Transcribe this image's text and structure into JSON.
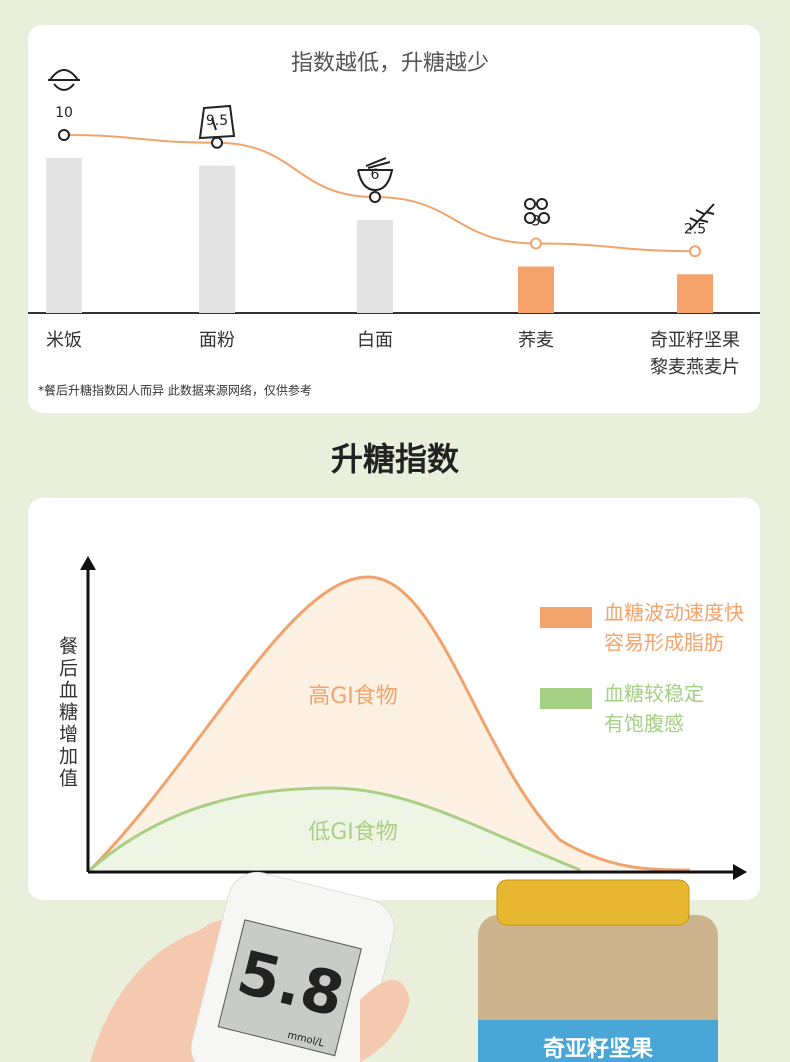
{
  "chart_data": [
    {
      "type": "bar",
      "title": "指数越低，升糖越少",
      "categories": [
        "米饭",
        "面粉",
        "白面",
        "荞麦",
        "奇亚籽坚果黎麦燕麦片"
      ],
      "values": [
        10,
        9.5,
        6,
        3,
        2.5
      ],
      "colors": [
        "#e3e3e3",
        "#e3e3e3",
        "#e3e3e3",
        "#f6a36b",
        "#f6a36b"
      ],
      "line_color": "#f0a46c",
      "note": "*餐后升糖指数因人而异 此数据来源网络，仅供参考"
    }
  ],
  "section_title": "升糖指数",
  "gi_diagram": {
    "y_label": "餐后血糖增加值",
    "curves": [
      {
        "name": "高GI食物",
        "color": "#f0a46c"
      },
      {
        "name": "低GI食物",
        "color": "#a9cf86"
      }
    ],
    "legend": [
      {
        "lines": [
          "血糖波动速度快",
          "容易形成脂肪"
        ],
        "color": "#f3a46d"
      },
      {
        "lines": [
          "血糖较稳定",
          "有饱腹感"
        ],
        "color": "#a5cf84"
      }
    ]
  },
  "photo": {
    "meter_reading": "5.8",
    "meter_unit": "mmol/L",
    "jar_brand": "奇亚籽坚果"
  }
}
